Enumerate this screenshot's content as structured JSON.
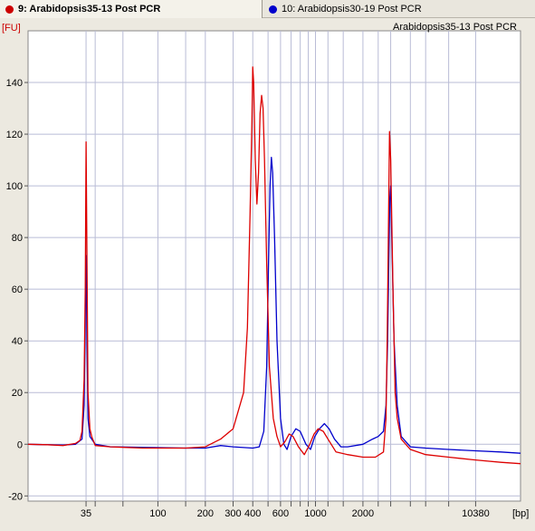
{
  "tabs": [
    {
      "label": "9: Arabidopsis35-13 Post PCR",
      "color": "#cc0000",
      "active": true
    },
    {
      "label": "10: Arabidopsis30-19 Post PCR",
      "color": "#0000cc",
      "active": false
    }
  ],
  "chart_data": {
    "type": "line",
    "title": "Arabidopsis35-13 Post PCR",
    "ylabel": "[FU]",
    "xlabel": "[bp]",
    "ylim": [
      -22,
      160
    ],
    "x_domain": [
      15,
      20000
    ],
    "x_scale": "log",
    "yticks": [
      -20,
      0,
      20,
      40,
      60,
      80,
      100,
      120,
      140
    ],
    "xticks": [
      "35",
      "100",
      "200",
      "300",
      "400",
      "600",
      "1000",
      "2000",
      "10380"
    ],
    "grid": true,
    "x_gridlines": [
      35,
      40,
      60,
      100,
      150,
      200,
      300,
      400,
      500,
      600,
      700,
      800,
      900,
      1000,
      1200,
      1500,
      2000,
      2500,
      3000,
      4000,
      5000,
      7000,
      10380
    ],
    "series": [
      {
        "name": "9: Arabidopsis35-13 Post PCR",
        "color": "#dd0000",
        "points": [
          [
            15,
            0
          ],
          [
            20,
            -0.2
          ],
          [
            25,
            -0.5
          ],
          [
            30,
            0.3
          ],
          [
            32,
            1.5
          ],
          [
            33,
            5
          ],
          [
            34,
            25
          ],
          [
            34.6,
            60
          ],
          [
            35,
            117
          ],
          [
            35.5,
            70
          ],
          [
            36,
            20
          ],
          [
            37,
            6
          ],
          [
            38,
            3
          ],
          [
            40,
            -0.5
          ],
          [
            50,
            -1
          ],
          [
            80,
            -1.5
          ],
          [
            150,
            -1.5
          ],
          [
            200,
            -1
          ],
          [
            250,
            2
          ],
          [
            300,
            6
          ],
          [
            350,
            20
          ],
          [
            370,
            45
          ],
          [
            385,
            90
          ],
          [
            395,
            125
          ],
          [
            400,
            146
          ],
          [
            405,
            140
          ],
          [
            415,
            110
          ],
          [
            425,
            93
          ],
          [
            435,
            105
          ],
          [
            445,
            128
          ],
          [
            455,
            135
          ],
          [
            465,
            130
          ],
          [
            475,
            110
          ],
          [
            490,
            70
          ],
          [
            510,
            30
          ],
          [
            540,
            10
          ],
          [
            570,
            3
          ],
          [
            600,
            -1
          ],
          [
            640,
            1
          ],
          [
            680,
            4
          ],
          [
            720,
            3
          ],
          [
            780,
            -1
          ],
          [
            850,
            -4
          ],
          [
            920,
            0
          ],
          [
            980,
            4
          ],
          [
            1040,
            6
          ],
          [
            1120,
            5
          ],
          [
            1200,
            2
          ],
          [
            1350,
            -3
          ],
          [
            1600,
            -4
          ],
          [
            2000,
            -5
          ],
          [
            2400,
            -5
          ],
          [
            2700,
            -3
          ],
          [
            2800,
            10
          ],
          [
            2850,
            40
          ],
          [
            2900,
            80
          ],
          [
            2950,
            121
          ],
          [
            3000,
            110
          ],
          [
            3100,
            60
          ],
          [
            3200,
            20
          ],
          [
            3300,
            10
          ],
          [
            3500,
            2
          ],
          [
            4000,
            -2
          ],
          [
            5000,
            -4
          ],
          [
            7000,
            -5
          ],
          [
            10000,
            -6
          ],
          [
            15000,
            -7
          ],
          [
            20000,
            -7.5
          ]
        ]
      },
      {
        "name": "10: Arabidopsis30-19 Post PCR",
        "color": "#0000cc",
        "points": [
          [
            15,
            0
          ],
          [
            20,
            -0.2
          ],
          [
            25,
            -0.3
          ],
          [
            30,
            0
          ],
          [
            33,
            2
          ],
          [
            34,
            15
          ],
          [
            34.6,
            50
          ],
          [
            35,
            73
          ],
          [
            35.5,
            40
          ],
          [
            36,
            10
          ],
          [
            37,
            3
          ],
          [
            38,
            2
          ],
          [
            40,
            0
          ],
          [
            50,
            -1
          ],
          [
            80,
            -1.2
          ],
          [
            150,
            -1.5
          ],
          [
            200,
            -1.5
          ],
          [
            250,
            -0.5
          ],
          [
            300,
            -1
          ],
          [
            400,
            -1.5
          ],
          [
            440,
            -1
          ],
          [
            470,
            5
          ],
          [
            490,
            30
          ],
          [
            505,
            75
          ],
          [
            515,
            100
          ],
          [
            525,
            111
          ],
          [
            535,
            105
          ],
          [
            550,
            80
          ],
          [
            570,
            40
          ],
          [
            600,
            10
          ],
          [
            630,
            0
          ],
          [
            660,
            -2
          ],
          [
            700,
            3
          ],
          [
            750,
            6
          ],
          [
            800,
            5
          ],
          [
            870,
            0
          ],
          [
            930,
            -2
          ],
          [
            990,
            3
          ],
          [
            1060,
            6
          ],
          [
            1140,
            8
          ],
          [
            1220,
            6
          ],
          [
            1320,
            2
          ],
          [
            1450,
            -1
          ],
          [
            1600,
            -1
          ],
          [
            2000,
            0
          ],
          [
            2300,
            2
          ],
          [
            2500,
            3
          ],
          [
            2700,
            5
          ],
          [
            2800,
            15
          ],
          [
            2870,
            40
          ],
          [
            2920,
            70
          ],
          [
            2960,
            95
          ],
          [
            3000,
            100
          ],
          [
            3050,
            80
          ],
          [
            3150,
            40
          ],
          [
            3300,
            15
          ],
          [
            3500,
            3
          ],
          [
            4000,
            -1
          ],
          [
            5000,
            -1.5
          ],
          [
            7000,
            -2
          ],
          [
            10000,
            -2.5
          ],
          [
            15000,
            -3
          ],
          [
            20000,
            -3.5
          ]
        ]
      }
    ]
  }
}
